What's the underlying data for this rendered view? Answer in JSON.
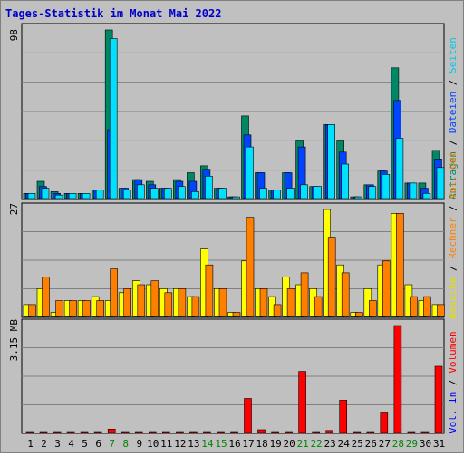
{
  "title": "Tages-Statistik im Monat Mai 2022",
  "colors": {
    "background": "#c0c0c0",
    "title": "#0000cc",
    "anfragen": "#008866",
    "dateien": "#0044ff",
    "seiten": "#00e0ff",
    "besuche": "#ffff00",
    "rechner": "#ff8000",
    "volumen": "#ff0000",
    "weekend": "#008800",
    "weekday": "#000000"
  },
  "right_legend": {
    "top": [
      {
        "text": "Anfragen",
        "color": "#008866"
      },
      {
        "text": "Dateien",
        "color": "#0044ff"
      },
      {
        "text": "Seiten",
        "color": "#00c8e8"
      }
    ],
    "middle": [
      {
        "text": "Besuche",
        "color": "#e0e000"
      },
      {
        "text": "Rechner",
        "color": "#ff8000"
      },
      {
        "text": "Vol. Out",
        "color": "#ff8000"
      }
    ],
    "bottom": [
      {
        "text": "Vol. In",
        "color": "#0000ff"
      },
      {
        "text": "Volumen",
        "color": "#ff0000"
      }
    ],
    "separator": " / "
  },
  "chart_data": [
    {
      "type": "bar",
      "panel": "requests",
      "ymax_label": "98",
      "ylim": [
        0,
        98
      ],
      "categories": [
        "1",
        "2",
        "3",
        "4",
        "5",
        "6",
        "7",
        "8",
        "9",
        "10",
        "11",
        "12",
        "13",
        "14",
        "15",
        "16",
        "17",
        "18",
        "19",
        "20",
        "21",
        "22",
        "23",
        "24",
        "25",
        "26",
        "27",
        "28",
        "29",
        "30",
        "31"
      ],
      "weekend_days": [
        7,
        8,
        14,
        15,
        21,
        22,
        28,
        29
      ],
      "series": [
        {
          "name": "Anfragen",
          "color": "#008866",
          "values": [
            3,
            10,
            4,
            3,
            3,
            5,
            98,
            6,
            11,
            10,
            6,
            11,
            15,
            19,
            6,
            1,
            48,
            15,
            5,
            15,
            34,
            7,
            43,
            34,
            1,
            8,
            16,
            76,
            9,
            9,
            28
          ]
        },
        {
          "name": "Dateien",
          "color": "#0044ff",
          "values": [
            3,
            7,
            3,
            3,
            3,
            5,
            40,
            6,
            11,
            8,
            6,
            10,
            10,
            17,
            6,
            1,
            37,
            15,
            5,
            15,
            30,
            7,
            43,
            27,
            1,
            8,
            16,
            57,
            9,
            6,
            23
          ]
        },
        {
          "name": "Seiten",
          "color": "#00e0ff",
          "values": [
            3,
            6,
            2,
            3,
            3,
            5,
            93,
            5,
            8,
            6,
            6,
            7,
            4,
            13,
            6,
            1,
            30,
            6,
            5,
            6,
            8,
            7,
            43,
            20,
            1,
            7,
            14,
            35,
            9,
            3,
            18
          ]
        }
      ]
    },
    {
      "type": "bar",
      "panel": "visits",
      "ymax_label": "27",
      "ylim": [
        0,
        27
      ],
      "categories": [
        "1",
        "2",
        "3",
        "4",
        "5",
        "6",
        "7",
        "8",
        "9",
        "10",
        "11",
        "12",
        "13",
        "14",
        "15",
        "16",
        "17",
        "18",
        "19",
        "20",
        "21",
        "22",
        "23",
        "24",
        "25",
        "26",
        "27",
        "28",
        "29",
        "30",
        "31"
      ],
      "series": [
        {
          "name": "Besuche",
          "color": "#ffff00",
          "values": [
            3,
            7,
            1,
            4,
            4,
            5,
            4,
            6,
            9,
            8,
            7,
            7,
            5,
            17,
            7,
            1,
            14,
            7,
            5,
            10,
            8,
            7,
            27,
            13,
            1,
            7,
            13,
            26,
            8,
            4,
            3
          ]
        },
        {
          "name": "Rechner",
          "color": "#ff8000",
          "values": [
            3,
            10,
            4,
            4,
            4,
            4,
            12,
            7,
            8,
            9,
            6,
            7,
            5,
            13,
            7,
            1,
            25,
            7,
            3,
            7,
            11,
            5,
            20,
            11,
            1,
            4,
            14,
            26,
            5,
            5,
            3
          ]
        }
      ]
    },
    {
      "type": "bar",
      "panel": "volume",
      "ymax_label": "3.15 MB",
      "ylim": [
        0,
        3.15
      ],
      "categories": [
        "1",
        "2",
        "3",
        "4",
        "5",
        "6",
        "7",
        "8",
        "9",
        "10",
        "11",
        "12",
        "13",
        "14",
        "15",
        "16",
        "17",
        "18",
        "19",
        "20",
        "21",
        "22",
        "23",
        "24",
        "25",
        "26",
        "27",
        "28",
        "29",
        "30",
        "31"
      ],
      "series": [
        {
          "name": "Volumen",
          "color": "#ff0000",
          "values": [
            0.02,
            0.02,
            0.02,
            0.02,
            0.02,
            0.02,
            0.1,
            0.02,
            0.02,
            0.02,
            0.02,
            0.02,
            0.02,
            0.02,
            0.02,
            0.02,
            1.0,
            0.08,
            0.02,
            0.02,
            1.8,
            0.02,
            0.06,
            0.95,
            0.02,
            0.02,
            0.6,
            3.15,
            0.02,
            0.02,
            1.95
          ]
        }
      ]
    }
  ]
}
